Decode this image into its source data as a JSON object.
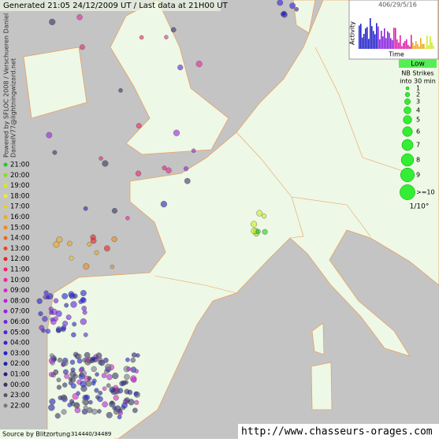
{
  "header": {
    "title": "Generated 21:05 24/12/2009 UT / Last data at 21H00 UT"
  },
  "credits": {
    "line1": "Powered by SFLOC 2008 / Verschueren Daniel",
    "line2": "DanielV77@lightningwizard.net"
  },
  "activity_inset": {
    "counts": "406/29/5/16",
    "y_label": "Activity",
    "x_label": "Time"
  },
  "strike_legend": {
    "level": "Low",
    "title_1": "NB Strikes",
    "title_2": "into 30 min",
    "sizes": [
      "1",
      "2",
      "3",
      "4",
      "5",
      "6",
      "7",
      "8",
      "9",
      ">=10"
    ],
    "scale": "1/10°"
  },
  "time_legend": [
    {
      "label": "21:00",
      "color": "#22cc22"
    },
    {
      "label": "20:00",
      "color": "#88dd22"
    },
    {
      "label": "19:00",
      "color": "#ccee22"
    },
    {
      "label": "18:00",
      "color": "#eeee22"
    },
    {
      "label": "17:00",
      "color": "#eecc22"
    },
    {
      "label": "16:00",
      "color": "#eeaa22"
    },
    {
      "label": "15:00",
      "color": "#ee8822"
    },
    {
      "label": "14:00",
      "color": "#ee6622"
    },
    {
      "label": "13:00",
      "color": "#ee4422"
    },
    {
      "label": "12:00",
      "color": "#ee2222"
    },
    {
      "label": "11:00",
      "color": "#ee2266"
    },
    {
      "label": "10:00",
      "color": "#ee2299"
    },
    {
      "label": "09:00",
      "color": "#dd22cc"
    },
    {
      "label": "08:00",
      "color": "#bb22dd"
    },
    {
      "label": "07:00",
      "color": "#9922dd"
    },
    {
      "label": "06:00",
      "color": "#7722dd"
    },
    {
      "label": "05:00",
      "color": "#5522dd"
    },
    {
      "label": "04:00",
      "color": "#3322dd"
    },
    {
      "label": "03:00",
      "color": "#2222cc"
    },
    {
      "label": "02:00",
      "color": "#2222aa"
    },
    {
      "label": "01:00",
      "color": "#222288"
    },
    {
      "label": "00:00",
      "color": "#333366"
    },
    {
      "label": "23:00",
      "color": "#555566"
    },
    {
      "label": "22:00",
      "color": "#777788"
    }
  ],
  "footer": {
    "source": "Source by Blitzortung",
    "count": "314440/34489",
    "url": "http://www.chasseurs-orages.com"
  }
}
